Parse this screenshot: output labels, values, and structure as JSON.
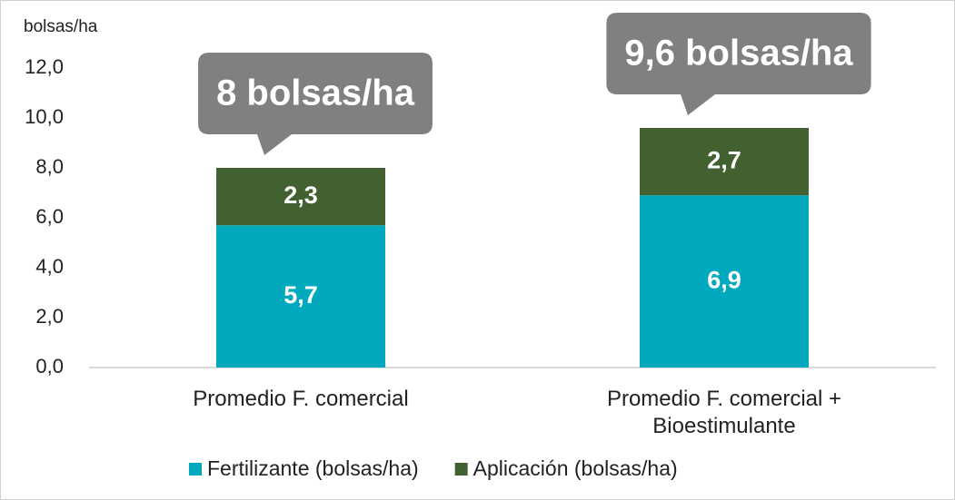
{
  "chart_data": {
    "type": "stacked_bar",
    "y_label": "bolsas/ha",
    "categories": [
      "Promedio F. comercial",
      "Promedio F. comercial + Bioestimulante"
    ],
    "series": [
      {
        "name": "Fertilizante (bolsas/ha)",
        "color": "#00a9bd",
        "values": [
          5.7,
          6.9
        ],
        "value_labels": [
          "5,7",
          "6,9"
        ]
      },
      {
        "name": "Aplicación (bolsas/ha)",
        "color": "#436030",
        "values": [
          2.3,
          2.7
        ],
        "value_labels": [
          "2,3",
          "2,7"
        ]
      }
    ],
    "annotations": [
      "8 bolsas/ha",
      "9,6 bolsas/ha"
    ],
    "ylim": [
      0,
      12
    ],
    "yticks": [
      {
        "value": 0,
        "label": "0,0"
      },
      {
        "value": 2,
        "label": "2,0"
      },
      {
        "value": 4,
        "label": "4,0"
      },
      {
        "value": 6,
        "label": "6,0"
      },
      {
        "value": 8,
        "label": "8,0"
      },
      {
        "value": 10,
        "label": "10,0"
      },
      {
        "value": 12,
        "label": "12,0"
      }
    ],
    "legend": "bottom"
  }
}
